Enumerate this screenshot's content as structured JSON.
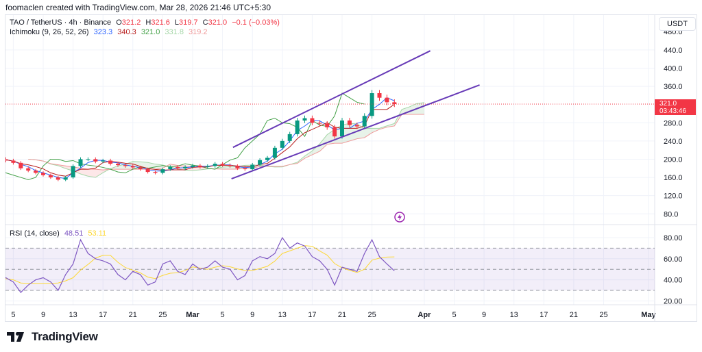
{
  "credit": "foomaclen created with TradingView.com, Mar 28, 2026 21:46 UTC+5:30",
  "legend": {
    "symbol": "TAO / TetherUS · 4h · Binance",
    "o_label": "O",
    "o": "321.2",
    "h_label": "H",
    "h": "321.6",
    "l_label": "L",
    "l": "319.7",
    "c_label": "C",
    "c": "321.0",
    "change": "−0.1 (−0.03%)",
    "ichimoku_label": "Ichimoku (9, 26, 52, 26)",
    "ichimoku_values": [
      "323.3",
      "340.3",
      "321.0",
      "331.8",
      "319.2"
    ],
    "rsi_label": "RSI (14, close)",
    "rsi_value": "48.51",
    "rsi_ma_value": "53.11"
  },
  "currency_button": "USDT",
  "price_tag": {
    "price": "321.0",
    "countdown": "03:43:46"
  },
  "brand": "TradingView",
  "colors": {
    "up": "#089981",
    "down": "#f23645",
    "conversion": "#2962ff",
    "base": "#b71c1c",
    "lagging": "#43a047",
    "spanA": "#a5d6a7",
    "spanB": "#ef9a9a",
    "rsi": "#7e57c2",
    "rsi_ma": "#fdd835",
    "trendline": "#673ab7",
    "icon": "lightning-icon"
  },
  "chart_data": {
    "type": "candlestick",
    "price_axis": {
      "ticks": [
        "440.0",
        "400.0",
        "360.0",
        "280.0",
        "240.0",
        "200.0",
        "160.0",
        "120.0",
        "80.0"
      ],
      "range": [
        62,
        470
      ]
    },
    "rsi_axis": {
      "ticks": [
        "80.00",
        "60.00",
        "40.00",
        "20.00"
      ],
      "bands": [
        70,
        50,
        30
      ],
      "range": [
        14,
        88
      ]
    },
    "x_ticks": [
      [
        "Feb 5",
        "5"
      ],
      [
        "Feb 9",
        "9"
      ],
      [
        "Feb 13",
        "13"
      ],
      [
        "Feb 17",
        "17"
      ],
      [
        "Feb 21",
        "21"
      ],
      [
        "Feb 25",
        "25"
      ],
      [
        "Mar 1",
        "Mar"
      ],
      [
        "Mar 5",
        "5"
      ],
      [
        "Mar 9",
        "9"
      ],
      [
        "Mar 13",
        "13"
      ],
      [
        "Mar 17",
        "17"
      ],
      [
        "Mar 21",
        "21"
      ],
      [
        "Mar 25",
        "25"
      ],
      [
        "Apr 1",
        "Apr"
      ],
      [
        "Apr 5",
        "5"
      ],
      [
        "Apr 9",
        "9"
      ],
      [
        "Apr 13",
        "13"
      ],
      [
        "Apr 17",
        "17"
      ],
      [
        "Apr 21",
        "21"
      ],
      [
        "Apr 25",
        "25"
      ],
      [
        "May 1",
        "May"
      ]
    ],
    "start_date": "Feb 3",
    "closes": [
      200,
      197,
      192,
      180,
      175,
      170,
      165,
      160,
      155,
      160,
      185,
      200,
      200,
      195,
      197,
      190,
      187,
      185,
      182,
      178,
      172,
      170,
      178,
      183,
      180,
      183,
      186,
      183,
      185,
      190,
      187,
      185,
      180,
      178,
      188,
      198,
      203,
      225,
      240,
      255,
      285,
      290,
      280,
      278,
      270,
      250,
      285,
      275,
      272,
      295,
      345,
      335,
      325,
      321
    ],
    "rsi": [
      40,
      42,
      38,
      28,
      35,
      40,
      42,
      38,
      30,
      45,
      55,
      78,
      65,
      60,
      58,
      55,
      45,
      40,
      48,
      45,
      35,
      38,
      55,
      58,
      48,
      45,
      55,
      50,
      52,
      58,
      52,
      50,
      40,
      44,
      58,
      62,
      60,
      65,
      80,
      70,
      75,
      72,
      62,
      58,
      50,
      35,
      52,
      50,
      48,
      65,
      78,
      62,
      55,
      48.51
    ],
    "trendlines": [
      {
        "from": [
          "Mar 6.4",
          226
        ],
        "to": [
          "Apr 1.8",
          438
        ]
      },
      {
        "from": [
          "Mar 6.2",
          157
        ],
        "to": [
          "Apr 8.4",
          363
        ]
      }
    ],
    "last_price": 321.0
  }
}
